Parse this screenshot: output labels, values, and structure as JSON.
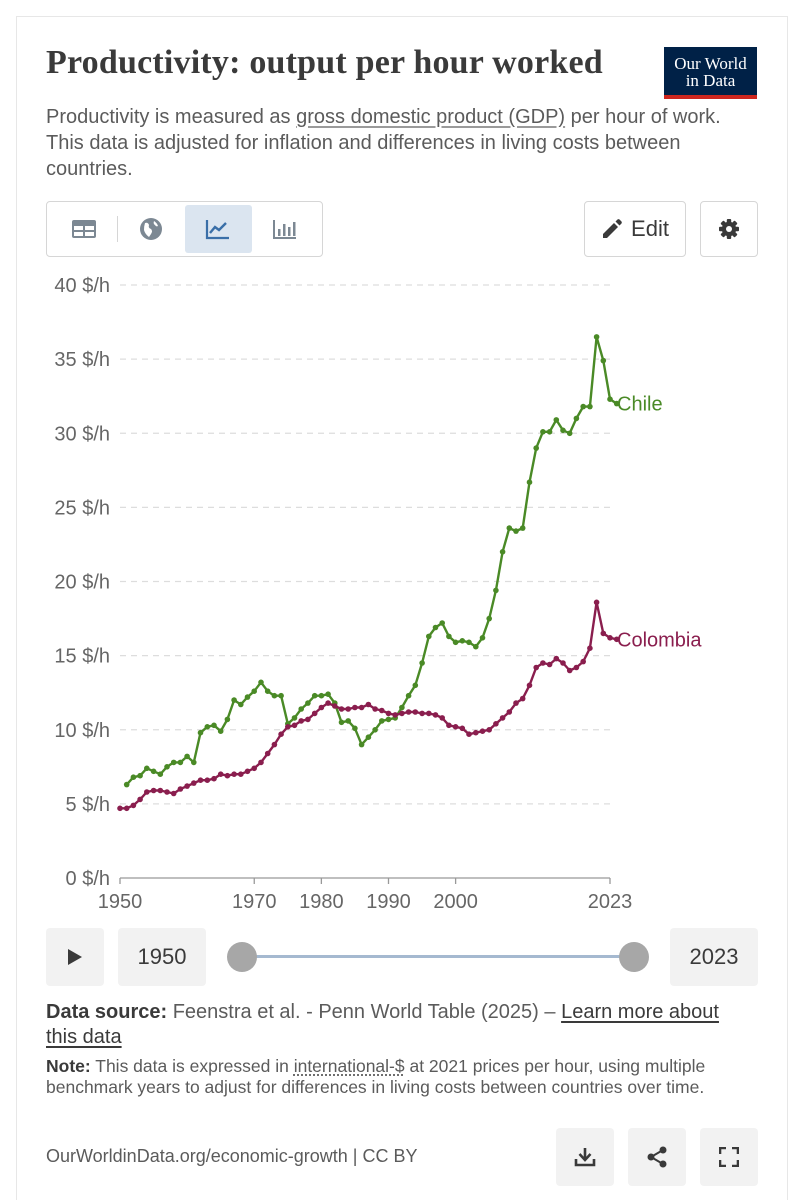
{
  "title": "Productivity: output per hour worked",
  "logo": {
    "line1": "Our World",
    "line2": "in Data"
  },
  "subtitle": {
    "part1": "Productivity is measured as ",
    "link": "gross domestic product (GDP)",
    "part2": " per hour of work. This data is adjusted for inflation and differences in living costs between countries."
  },
  "tabs": [
    {
      "icon": "table-icon",
      "active": false
    },
    {
      "icon": "globe-icon",
      "active": false
    },
    {
      "icon": "line-chart-icon",
      "active": true
    },
    {
      "icon": "bar-chart-icon",
      "active": false
    }
  ],
  "edit_label": "Edit",
  "colors": {
    "chile": "#4a8a26",
    "colombia": "#8a1e4e",
    "grid": "#dddddd",
    "axis_text": "#666666"
  },
  "chart_data": {
    "type": "line",
    "ylim": [
      0,
      40
    ],
    "xlim": [
      1950,
      2023
    ],
    "y_ticks": [
      0,
      5,
      10,
      15,
      20,
      25,
      30,
      35,
      40
    ],
    "y_tick_labels": [
      "0 $/h",
      "5 $/h",
      "10 $/h",
      "15 $/h",
      "20 $/h",
      "25 $/h",
      "30 $/h",
      "35 $/h",
      "40 $/h"
    ],
    "x_ticks": [
      1950,
      1970,
      1980,
      1990,
      2000,
      2023
    ],
    "x_tick_labels": [
      "1950",
      "1970",
      "1980",
      "1990",
      "2000",
      "2023"
    ],
    "grid": true,
    "series": [
      {
        "name": "Chile",
        "x_start": 1951,
        "values": [
          6.3,
          6.8,
          6.9,
          7.4,
          7.2,
          7.0,
          7.5,
          7.8,
          7.8,
          8.2,
          7.8,
          9.8,
          10.2,
          10.3,
          9.9,
          10.7,
          12.0,
          11.7,
          12.2,
          12.6,
          13.2,
          12.6,
          12.3,
          12.3,
          10.4,
          10.8,
          11.4,
          11.8,
          12.3,
          12.3,
          12.4,
          11.8,
          10.5,
          10.6,
          10.1,
          9.0,
          9.5,
          10.0,
          10.6,
          10.7,
          10.8,
          11.5,
          12.3,
          13.0,
          14.5,
          16.3,
          16.9,
          17.2,
          16.3,
          15.9,
          16.0,
          15.9,
          15.6,
          16.2,
          17.5,
          19.4,
          22.0,
          23.6,
          23.4,
          23.6,
          26.7,
          29.0,
          30.1,
          30.1,
          30.9,
          30.2,
          30.0,
          31.0,
          31.8,
          31.8,
          36.5,
          34.9,
          32.3,
          32.0
        ]
      },
      {
        "name": "Colombia",
        "x_start": 1950,
        "values": [
          4.7,
          4.7,
          4.9,
          5.3,
          5.8,
          5.9,
          5.9,
          5.8,
          5.7,
          6.0,
          6.2,
          6.4,
          6.6,
          6.6,
          6.7,
          7.0,
          6.9,
          7.0,
          7.0,
          7.2,
          7.4,
          7.8,
          8.4,
          9.0,
          9.7,
          10.2,
          10.3,
          10.6,
          10.7,
          11.1,
          11.5,
          11.8,
          11.6,
          11.4,
          11.4,
          11.5,
          11.5,
          11.7,
          11.4,
          11.3,
          11.1,
          11.0,
          11.1,
          11.2,
          11.2,
          11.1,
          11.1,
          11.0,
          10.8,
          10.3,
          10.2,
          10.1,
          9.7,
          9.8,
          9.9,
          10.0,
          10.4,
          10.8,
          11.2,
          11.8,
          12.1,
          13.0,
          14.2,
          14.5,
          14.4,
          14.8,
          14.5,
          14.0,
          14.2,
          14.6,
          15.5,
          18.6,
          16.5,
          16.2,
          16.1
        ]
      }
    ]
  },
  "timeline": {
    "start_year": "1950",
    "end_year": "2023"
  },
  "source": {
    "label": "Data source:",
    "text": " Feenstra et al. - Penn World Table (2025) – ",
    "link": "Learn more about this data"
  },
  "note": {
    "label": "Note:",
    "part1": " This data is expressed in ",
    "link": "international-$",
    "part2": " at 2021 prices per hour, using multiple benchmark years to adjust for differences in living costs between countries over time."
  },
  "footer": {
    "text": "OurWorldinData.org/economic-growth | CC BY"
  }
}
